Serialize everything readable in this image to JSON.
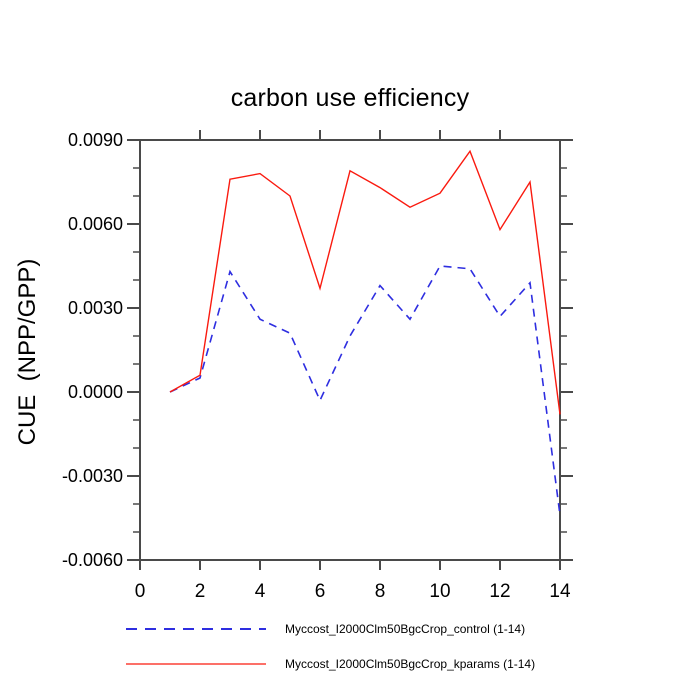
{
  "chart_data": {
    "type": "line",
    "title": "carbon use efficiency",
    "ylabel": "CUE  (NPP/GPP)",
    "xlabel": "",
    "x": [
      1,
      2,
      3,
      4,
      5,
      6,
      7,
      8,
      9,
      10,
      11,
      12,
      13,
      14
    ],
    "series": [
      {
        "name": "Myccost_I2000Clm50BgcCrop_control (1-14)",
        "color": "#2e2ee0",
        "line_style": "dashed",
        "values": [
          0.0,
          0.0005,
          0.0043,
          0.0026,
          0.0021,
          -0.0003,
          0.002,
          0.0038,
          0.0026,
          0.0045,
          0.0044,
          0.0027,
          0.0039,
          -0.0044
        ]
      },
      {
        "name": "Myccost_I2000Clm50BgcCrop_kparams (1-14)",
        "color": "#fa1a0f",
        "line_style": "solid",
        "values": [
          0.0,
          0.0006,
          0.0076,
          0.0078,
          0.007,
          0.0037,
          0.0079,
          0.0073,
          0.0066,
          0.0071,
          0.0086,
          0.0058,
          0.0075,
          -0.0008
        ]
      }
    ],
    "xlim": [
      0,
      14
    ],
    "ylim": [
      -0.006,
      0.009
    ],
    "x_major_ticks": [
      0,
      2,
      4,
      6,
      8,
      10,
      12,
      14
    ],
    "x_tick_labels": [
      "0",
      "2",
      "4",
      "6",
      "8",
      "10",
      "12",
      "14"
    ],
    "y_major_ticks": [
      -0.006,
      -0.003,
      0.0,
      0.003,
      0.006,
      0.009
    ],
    "y_tick_labels": [
      "-0.0060",
      "-0.0030",
      "0.0000",
      "0.0030",
      "0.0060",
      "0.0090"
    ],
    "y_minor_step": 0.001,
    "grid": "off",
    "legend_position": "bottom-left",
    "axis_color": "#4a4a4a",
    "text_color": "#000000",
    "background_color": "#ffffff"
  }
}
